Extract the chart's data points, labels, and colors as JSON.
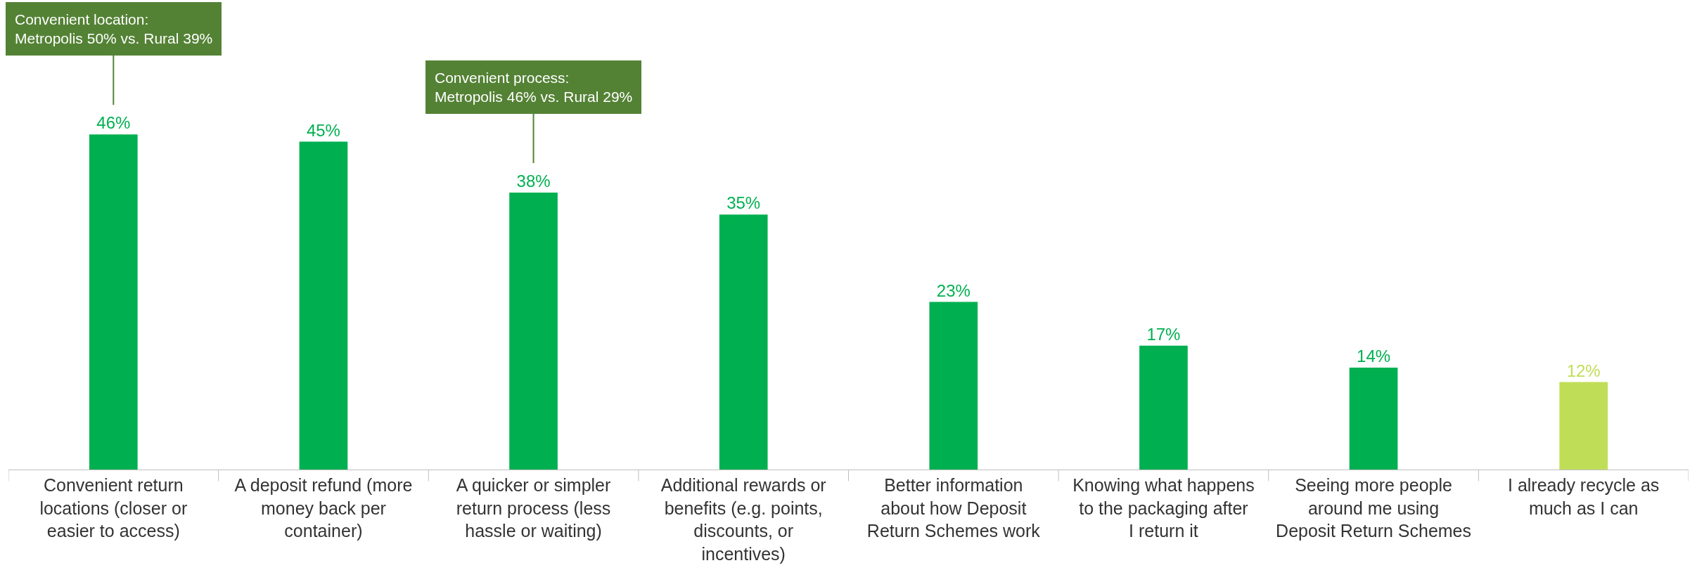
{
  "chart_data": {
    "type": "bar",
    "categories": [
      "Convenient return locations (closer or easier to access)",
      "A deposit refund (more money back per container)",
      "A quicker or simpler return process (less hassle or waiting)",
      "Additional rewards or benefits (e.g. points, discounts, or incentives)",
      "Better information about how Deposit Return Schemes work",
      "Knowing what happens to the packaging after I return it",
      "Seeing more people around me using Deposit Return Schemes",
      "I already recycle as much as I can"
    ],
    "values": [
      46,
      45,
      38,
      35,
      23,
      17,
      14,
      12
    ],
    "colors": [
      "#00b050",
      "#00b050",
      "#00b050",
      "#00b050",
      "#00b050",
      "#00b050",
      "#00b050",
      "#c0dd57"
    ],
    "value_labels": [
      "46%",
      "45%",
      "38%",
      "35%",
      "23%",
      "17%",
      "14%",
      "12%"
    ],
    "annotations": [
      {
        "text": "Convenient location:\nMetropolis 50% vs. Rural 39%",
        "x": "Convenient return locations (closer or easier to access)",
        "y": 46
      },
      {
        "text": "Convenient process:\nMetropolis 46% vs. Rural 29%",
        "x": "A quicker or simpler return process (less hassle or waiting)",
        "y": 38
      }
    ],
    "legend": false
  }
}
